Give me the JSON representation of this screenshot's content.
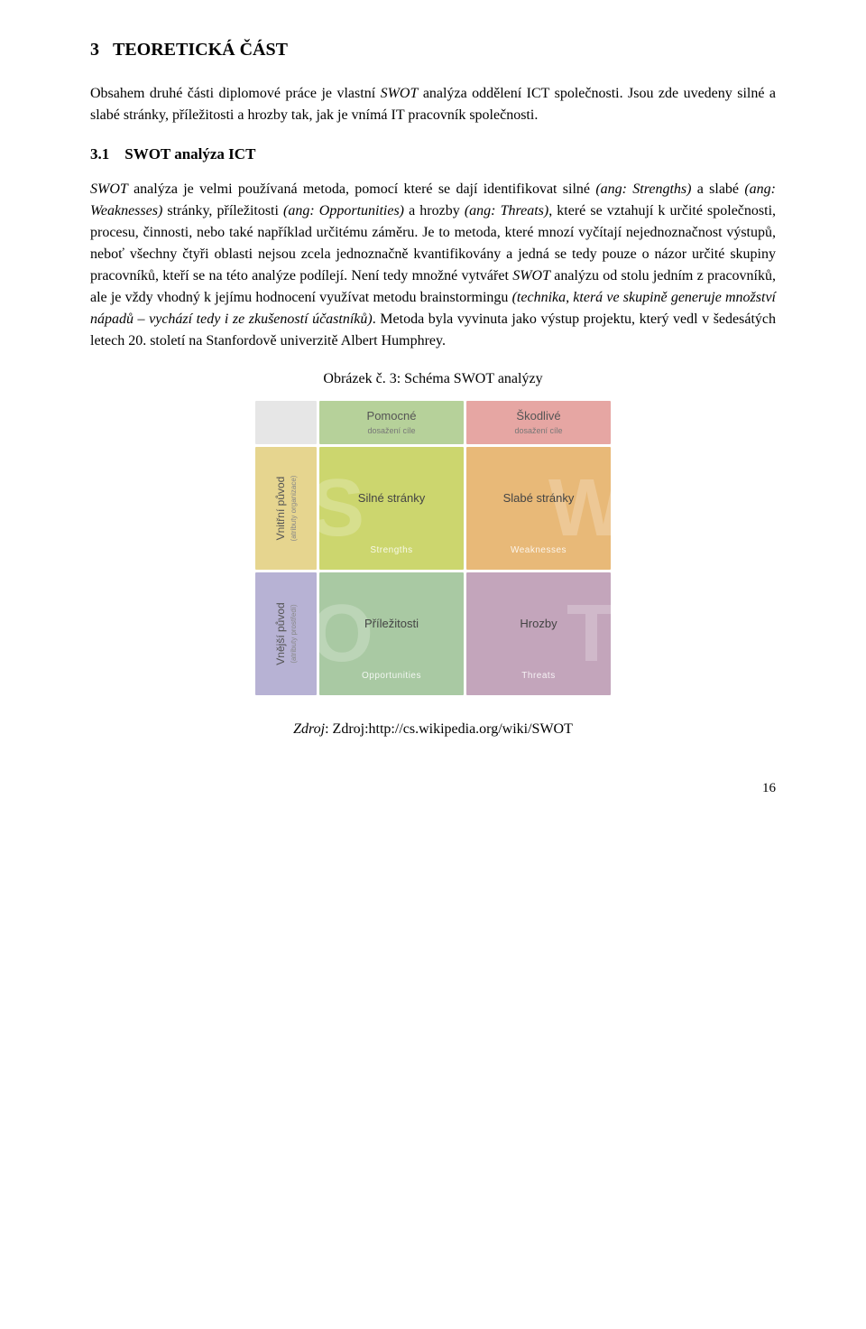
{
  "heading_main_number": "3",
  "heading_main_text": "TEORETICKÁ ČÁST",
  "para_intro": "Obsahem druhé části diplomové práce je vlastní SWOT analýza oddělení ICT společnosti. Jsou zde uvedeny silné a slabé stránky, příležitosti a hrozby tak, jak je vnímá IT pracovník společnosti.",
  "heading_sub_number": "3.1",
  "heading_sub_text": "SWOT analýza ICT",
  "para_body_1": "SWOT analýza je velmi používaná metoda, pomocí které se dají identifikovat silné (ang: Strengths) a slabé (ang: Weaknesses) stránky, příležitosti (ang: Opportunities)",
  "para_body_1b": " a hrozby (ang: Threats), které se vztahují k určité společnosti, procesu, činnosti, nebo také například určitému záměru. Je to metoda, které mnozí vyčítají nejednoznačnost výstupů, neboť všechny čtyři oblasti nejsou zcela jednoznačně kvantifikovány a jedná se tedy pouze o názor určité skupiny pracovníků, kteří se na této analýze podílejí. Není tedy množné vytvářet SWOT analýzu od stolu jedním z pracovníků, ale je vždy vhodný k jejímu hodnocení využívat metodu brainstormingu (technika, která ve skupině generuje množství nápadů – vychází tedy i ze zkušeností účastníků). Metoda byla vyvinuta jako výstup projektu, který vedl v šedesátých letech 20. století na Stanfordově univerzitě Albert Humphrey.",
  "figure_caption": "Obrázek č. 3: Schéma SWOT analýzy",
  "swot": {
    "header_helpful_main": "Pomocné",
    "header_helpful_sub": "dosažení cíle",
    "header_harmful_main": "Škodlivé",
    "header_harmful_sub": "dosažení cíle",
    "side_internal_main": "Vnitřní původ",
    "side_internal_sub": "(atributy organizace)",
    "side_external_main": "Vnější původ",
    "side_external_sub": "(atributy prostředí)",
    "q_strengths_main": "Silné stránky",
    "q_strengths_sub": "Strengths",
    "q_strengths_letter": "S",
    "q_weaknesses_main": "Slabé stránky",
    "q_weaknesses_sub": "Weaknesses",
    "q_weaknesses_letter": "W",
    "q_opportunities_main": "Příležitosti",
    "q_opportunities_sub": "Opportunities",
    "q_opportunities_letter": "O",
    "q_threats_main": "Hrozby",
    "q_threats_sub": "Threats",
    "q_threats_letter": "T",
    "colors": {
      "corner": "#e6e6e6",
      "header_helpful": "#b6d19a",
      "header_harmful": "#e6a6a3",
      "side_internal": "#e6d58f",
      "side_external": "#b7b2d4",
      "q_strengths": "#ccd66e",
      "q_weaknesses": "#e8b978",
      "q_opportunities": "#a9c9a3",
      "q_threats": "#c3a5bb"
    }
  },
  "source_label": "Zdroj",
  "source_text": ": Zdroj:http://cs.wikipedia.org/wiki/SWOT",
  "page_number": "16"
}
